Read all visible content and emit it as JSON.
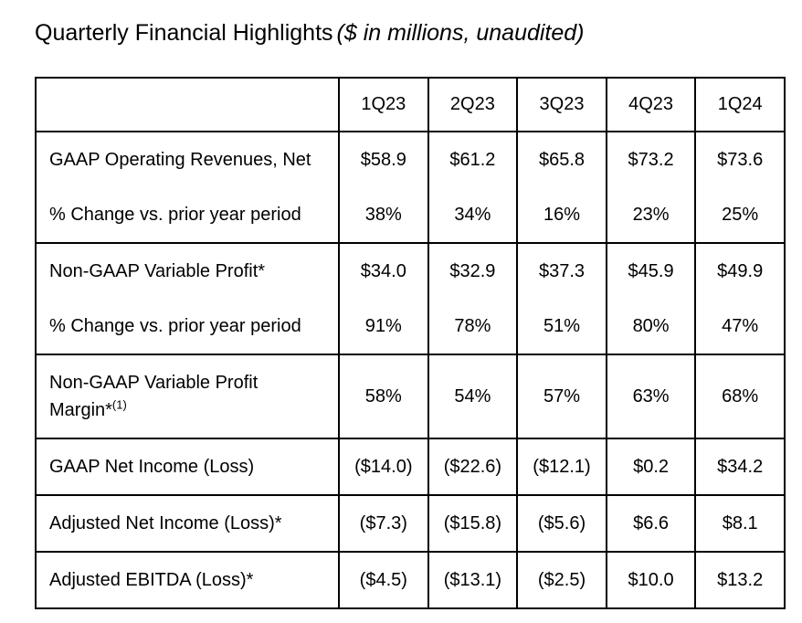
{
  "title": {
    "main": "Quarterly Financial Highlights",
    "note": "($ in millions, unaudited)"
  },
  "table": {
    "corner_label": "",
    "columns": [
      "1Q23",
      "2Q23",
      "3Q23",
      "4Q23",
      "1Q24"
    ],
    "sections": [
      {
        "rows": [
          {
            "label": "GAAP Operating Revenues, Net",
            "values": [
              "$58.9",
              "$61.2",
              "$65.8",
              "$73.2",
              "$73.6"
            ]
          },
          {
            "label": "% Change vs. prior year period",
            "values": [
              "38%",
              "34%",
              "16%",
              "23%",
              "25%"
            ]
          }
        ]
      },
      {
        "rows": [
          {
            "label": "Non-GAAP Variable Profit*",
            "values": [
              "$34.0",
              "$32.9",
              "$37.3",
              "$45.9",
              "$49.9"
            ]
          },
          {
            "label": "% Change vs. prior year period",
            "values": [
              "91%",
              "78%",
              "51%",
              "80%",
              "47%"
            ]
          }
        ]
      },
      {
        "rows": [
          {
            "label": "Non-GAAP Variable Profit Margin*",
            "label_sup": "(1)",
            "values": [
              "58%",
              "54%",
              "57%",
              "63%",
              "68%"
            ]
          }
        ]
      },
      {
        "rows": [
          {
            "label": "GAAP Net Income (Loss)",
            "values": [
              "($14.0)",
              "($22.6)",
              "($12.1)",
              "$0.2",
              "$34.2"
            ]
          }
        ]
      },
      {
        "rows": [
          {
            "label": "Adjusted Net Income (Loss)*",
            "values": [
              "($7.3)",
              "($15.8)",
              "($5.6)",
              "$6.6",
              "$8.1"
            ]
          }
        ]
      },
      {
        "rows": [
          {
            "label": "Adjusted EBITDA (Loss)*",
            "values": [
              "($4.5)",
              "($13.1)",
              "($2.5)",
              "$10.0",
              "$13.2"
            ]
          }
        ]
      }
    ],
    "colors": {
      "border": "#000000",
      "text": "#000000",
      "background": "#ffffff"
    }
  }
}
